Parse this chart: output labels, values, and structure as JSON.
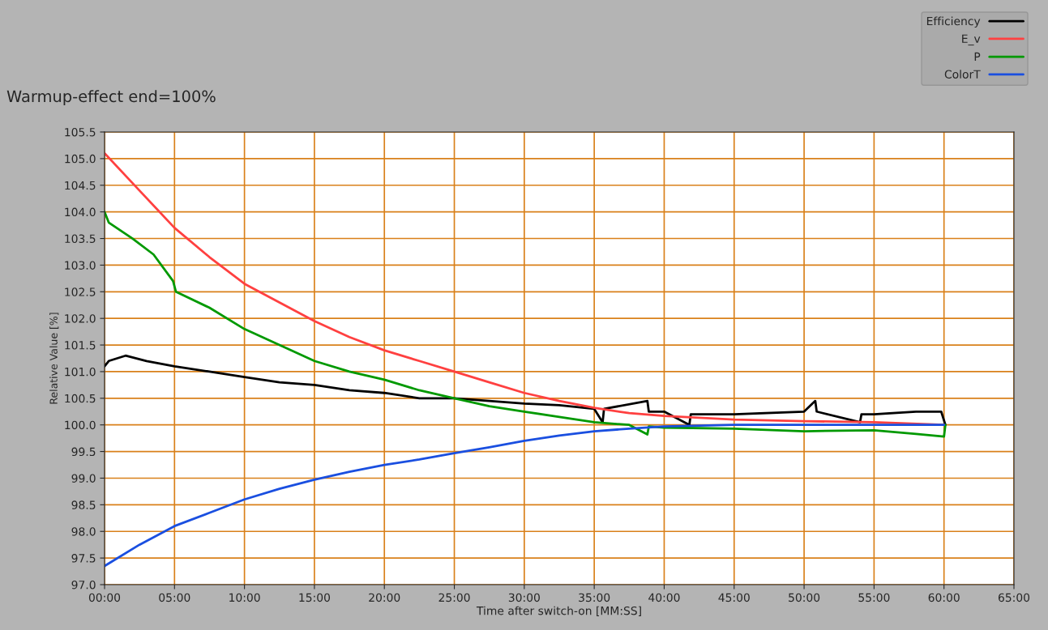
{
  "chart_data": {
    "type": "line",
    "title": "Warmup-effect end=100%",
    "xlabel": "Time after switch-on [MM:SS]",
    "ylabel": "Relative Value [%]",
    "series": [
      {
        "name": "Efficiency",
        "color": "#000000",
        "x": [
          0,
          0.3,
          1.5,
          3,
          5,
          7.5,
          10,
          12.5,
          15,
          17.5,
          20,
          22.5,
          25,
          27.5,
          30,
          32.5,
          35,
          35.6,
          35.7,
          38.8,
          38.9,
          40,
          41.8,
          41.9,
          45,
          50,
          50.8,
          50.9,
          54,
          54.1,
          55,
          58,
          59.8,
          60.1
        ],
        "values": [
          101.1,
          101.2,
          101.3,
          101.2,
          101.1,
          101.0,
          100.9,
          100.8,
          100.75,
          100.65,
          100.6,
          100.5,
          100.5,
          100.45,
          100.4,
          100.37,
          100.3,
          100.05,
          100.3,
          100.45,
          100.25,
          100.25,
          100.0,
          100.2,
          100.2,
          100.25,
          100.45,
          100.25,
          100.05,
          100.2,
          100.2,
          100.25,
          100.25,
          100.0
        ]
      },
      {
        "name": "E_v",
        "color": "#ff4040",
        "x": [
          0,
          2.5,
          5,
          7.5,
          10,
          12.5,
          15,
          17.5,
          20,
          22.5,
          25,
          27.5,
          30,
          32.5,
          35,
          37.5,
          40,
          45,
          50,
          55,
          60
        ],
        "values": [
          105.1,
          104.4,
          103.7,
          103.15,
          102.65,
          102.3,
          101.95,
          101.65,
          101.4,
          101.2,
          101.0,
          100.8,
          100.6,
          100.45,
          100.32,
          100.22,
          100.17,
          100.1,
          100.07,
          100.05,
          100.0
        ]
      },
      {
        "name": "P",
        "color": "#009900",
        "x": [
          0,
          0.3,
          2,
          3.5,
          4.9,
          5.1,
          7.5,
          10,
          12.5,
          15,
          17.5,
          20,
          22.5,
          25,
          27.5,
          30,
          32.5,
          35,
          37.5,
          38.8,
          38.9,
          40,
          45,
          50,
          55,
          58,
          60,
          60.1
        ],
        "values": [
          104.0,
          103.8,
          103.5,
          103.2,
          102.7,
          102.5,
          102.2,
          101.8,
          101.5,
          101.2,
          101.0,
          100.85,
          100.65,
          100.5,
          100.35,
          100.25,
          100.15,
          100.05,
          100.0,
          99.82,
          99.97,
          99.95,
          99.93,
          99.88,
          99.9,
          99.83,
          99.78,
          100.0
        ]
      },
      {
        "name": "ColorT",
        "color": "#1a4fe0",
        "x": [
          0,
          2.5,
          5,
          7.5,
          10,
          12.5,
          15,
          17.5,
          20,
          22.5,
          25,
          27.5,
          30,
          32.5,
          35,
          37.5,
          40,
          45,
          50,
          60
        ],
        "values": [
          97.35,
          97.75,
          98.1,
          98.35,
          98.6,
          98.8,
          98.97,
          99.12,
          99.25,
          99.35,
          99.47,
          99.58,
          99.7,
          99.8,
          99.88,
          99.93,
          99.97,
          100.0,
          100.0,
          100.0
        ]
      }
    ],
    "xlim": [
      0,
      65
    ],
    "xticks": [
      {
        "value": 0,
        "label": "00:00"
      },
      {
        "value": 5,
        "label": "05:00"
      },
      {
        "value": 10,
        "label": "10:00"
      },
      {
        "value": 15,
        "label": "15:00"
      },
      {
        "value": 20,
        "label": "20:00"
      },
      {
        "value": 25,
        "label": "25:00"
      },
      {
        "value": 30,
        "label": "30:00"
      },
      {
        "value": 35,
        "label": "35:00"
      },
      {
        "value": 40,
        "label": "40:00"
      },
      {
        "value": 45,
        "label": "45:00"
      },
      {
        "value": 50,
        "label": "50:00"
      },
      {
        "value": 55,
        "label": "55:00"
      },
      {
        "value": 60,
        "label": "60:00"
      },
      {
        "value": 65,
        "label": "65:00"
      }
    ],
    "ylim": [
      97.0,
      105.5
    ],
    "yticks": [
      {
        "value": 97.0,
        "label": "97.0"
      },
      {
        "value": 97.5,
        "label": "97.5"
      },
      {
        "value": 98.0,
        "label": "98.0"
      },
      {
        "value": 98.5,
        "label": "98.5"
      },
      {
        "value": 99.0,
        "label": "99.0"
      },
      {
        "value": 99.5,
        "label": "99.5"
      },
      {
        "value": 100.0,
        "label": "100.0"
      },
      {
        "value": 100.5,
        "label": "100.5"
      },
      {
        "value": 101.0,
        "label": "101.0"
      },
      {
        "value": 101.5,
        "label": "101.5"
      },
      {
        "value": 102.0,
        "label": "102.0"
      },
      {
        "value": 102.5,
        "label": "102.5"
      },
      {
        "value": 103.0,
        "label": "103.0"
      },
      {
        "value": 103.5,
        "label": "103.5"
      },
      {
        "value": 104.0,
        "label": "104.0"
      },
      {
        "value": 104.5,
        "label": "104.5"
      },
      {
        "value": 105.0,
        "label": "105.0"
      },
      {
        "value": 105.5,
        "label": "105.5"
      }
    ],
    "grid": true,
    "legend": "top right",
    "marker": "none",
    "line_style": "solid"
  }
}
